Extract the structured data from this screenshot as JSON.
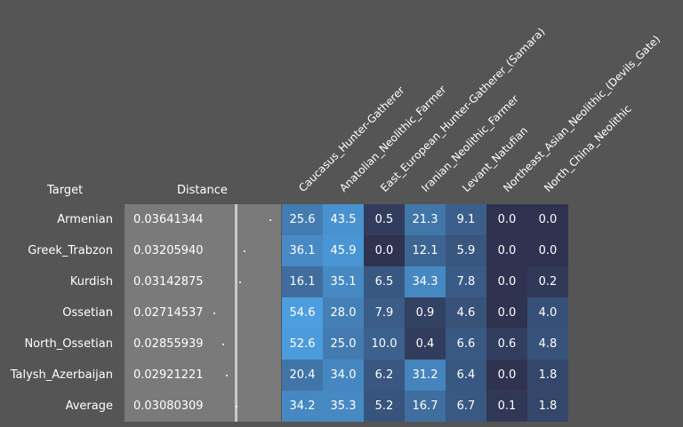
{
  "headers": {
    "target": "Target",
    "distance": "Distance"
  },
  "chart_data": {
    "type": "heatmap",
    "columns": [
      "Caucasus_Hunter-Gatherer",
      "Anatolian_Neolithic_Farmer",
      "East_European_Hunter-Gatherer_(Samara)",
      "Iranian_Neolithic_Farmer",
      "Levant_Natufian",
      "Northeast_Asian_Neolithic_(Devils_Gate)",
      "North_China_Neolithic"
    ],
    "rows": [
      {
        "target": "Armenian",
        "distance": "0.03641344",
        "distance_value": 0.03641344,
        "values": [
          "25.6",
          "43.5",
          "0.5",
          "21.3",
          "9.1",
          "0.0",
          "0.0"
        ]
      },
      {
        "target": "Greek_Trabzon",
        "distance": "0.03205940",
        "distance_value": 0.0320594,
        "values": [
          "36.1",
          "45.9",
          "0.0",
          "12.1",
          "5.9",
          "0.0",
          "0.0"
        ]
      },
      {
        "target": "Kurdish",
        "distance": "0.03142875",
        "distance_value": 0.03142875,
        "values": [
          "16.1",
          "35.1",
          "6.5",
          "34.3",
          "7.8",
          "0.0",
          "0.2"
        ]
      },
      {
        "target": "Ossetian",
        "distance": "0.02714537",
        "distance_value": 0.02714537,
        "values": [
          "54.6",
          "28.0",
          "7.9",
          "0.9",
          "4.6",
          "0.0",
          "4.0"
        ]
      },
      {
        "target": "North_Ossetian",
        "distance": "0.02855939",
        "distance_value": 0.02855939,
        "values": [
          "52.6",
          "25.0",
          "10.0",
          "0.4",
          "6.6",
          "0.6",
          "4.8"
        ]
      },
      {
        "target": "Talysh_Azerbaijan",
        "distance": "0.02921221",
        "distance_value": 0.02921221,
        "values": [
          "20.4",
          "34.0",
          "6.2",
          "31.2",
          "6.4",
          "0.0",
          "1.8"
        ]
      },
      {
        "target": "Average",
        "distance": "0.03080309",
        "distance_value": 0.03080309,
        "values": [
          "34.2",
          "35.3",
          "5.2",
          "16.7",
          "6.7",
          "0.1",
          "1.8"
        ]
      }
    ],
    "distance_reference": 0.0308,
    "value_range": [
      0,
      60
    ],
    "colors": {
      "background": "#555555",
      "low": "#2f3350",
      "high": "#4ea3e6",
      "distance_panel": "#7a7a7a"
    }
  }
}
